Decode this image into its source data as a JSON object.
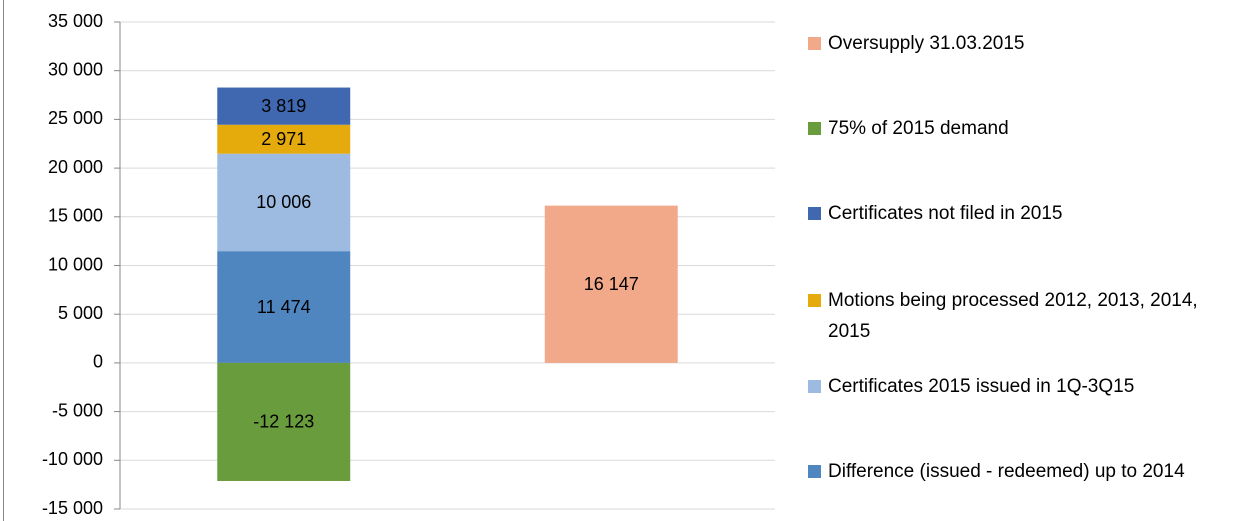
{
  "chart_data": {
    "type": "bar",
    "stacked": true,
    "categories": [
      null,
      null
    ],
    "series": [
      {
        "name": "Difference (issued - redeemed) up to 2014",
        "color": "#4f86c0",
        "values": [
          11474,
          null
        ],
        "value_labels": [
          "11 474",
          null
        ]
      },
      {
        "name": "Certificates 2015 issued in 1Q-3Q15",
        "color": "#9dbbe1",
        "values": [
          10006,
          null
        ],
        "value_labels": [
          "10 006",
          null
        ]
      },
      {
        "name": "Motions being processed 2012, 2013, 2014, 2015",
        "color": "#e5aa0c",
        "values": [
          2971,
          null
        ],
        "value_labels": [
          "2 971",
          null
        ]
      },
      {
        "name": "Certificates not filed in 2015",
        "color": "#3f68b1",
        "values": [
          3819,
          null
        ],
        "value_labels": [
          "3 819",
          null
        ]
      },
      {
        "name": "75% of 2015 demand",
        "color": "#699c3c",
        "values": [
          -12123,
          null
        ],
        "value_labels": [
          "-12 123",
          null
        ]
      },
      {
        "name": "Oversupply 31.03.2015",
        "color": "#f1a98a",
        "values": [
          null,
          16147
        ],
        "value_labels": [
          null,
          "16 147"
        ]
      }
    ],
    "ylim": [
      -15000,
      35000
    ],
    "yticks": [
      {
        "value": -15000,
        "label": "-15 000"
      },
      {
        "value": -10000,
        "label": "-10 000"
      },
      {
        "value": -5000,
        "label": "-5 000"
      },
      0,
      {
        "value": 5000,
        "label": "5 000"
      },
      {
        "value": 10000,
        "label": "10 000"
      },
      {
        "value": 15000,
        "label": "15 000"
      },
      {
        "value": 20000,
        "label": "20 000"
      },
      {
        "value": 25000,
        "label": "25 000"
      },
      {
        "value": 30000,
        "label": "30 000"
      },
      {
        "value": 35000,
        "label": "35 000"
      }
    ],
    "grid": true,
    "legend": "right"
  }
}
